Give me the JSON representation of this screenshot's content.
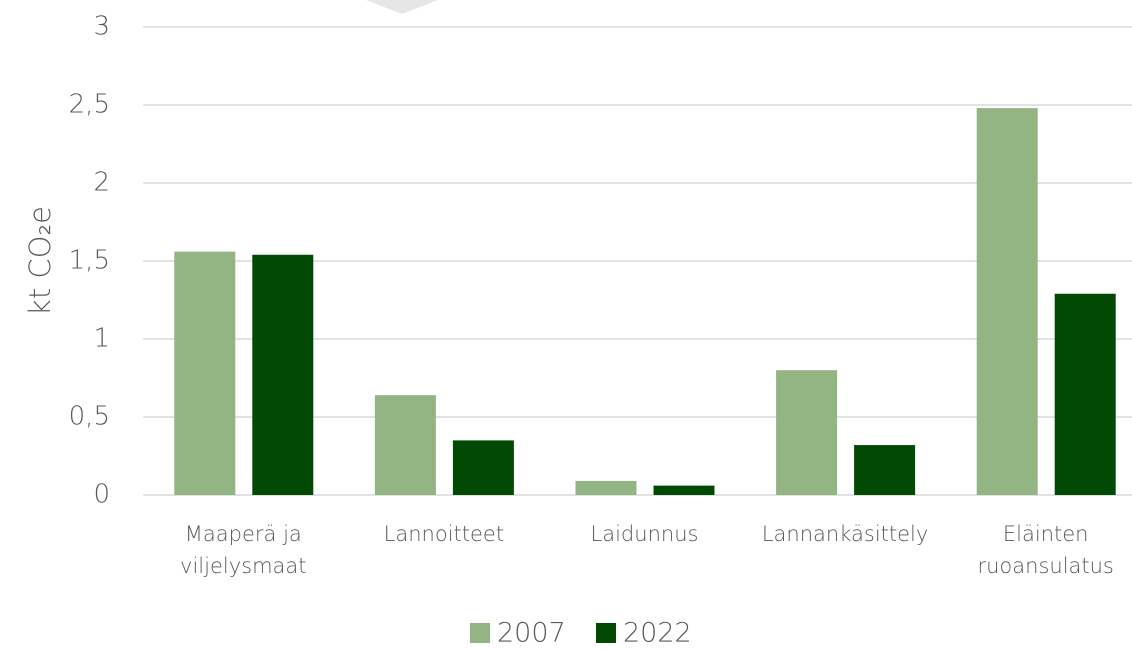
{
  "chart_data": {
    "type": "bar",
    "y_label": "kt CO₂e",
    "categories": [
      "Maaperä ja viljelysmaat",
      "Lannoitteet",
      "Laidunnus",
      "Lannankäsittely",
      "Eläinten ruoansulatus"
    ],
    "series": [
      {
        "name": "2007",
        "color": "#93b483",
        "values": [
          1.56,
          0.64,
          0.09,
          0.8,
          2.48
        ]
      },
      {
        "name": "2022",
        "color": "#024a04",
        "values": [
          1.54,
          0.35,
          0.06,
          0.32,
          1.29
        ]
      }
    ],
    "ylim": [
      0,
      3
    ],
    "yticks": [
      0,
      {
        "value": 0.5,
        "label": "0,5"
      },
      1,
      {
        "value": 1.5,
        "label": "1,5"
      },
      2,
      {
        "value": 2.5,
        "label": "2,5"
      },
      3
    ],
    "grid": true,
    "legend": "bottom"
  }
}
